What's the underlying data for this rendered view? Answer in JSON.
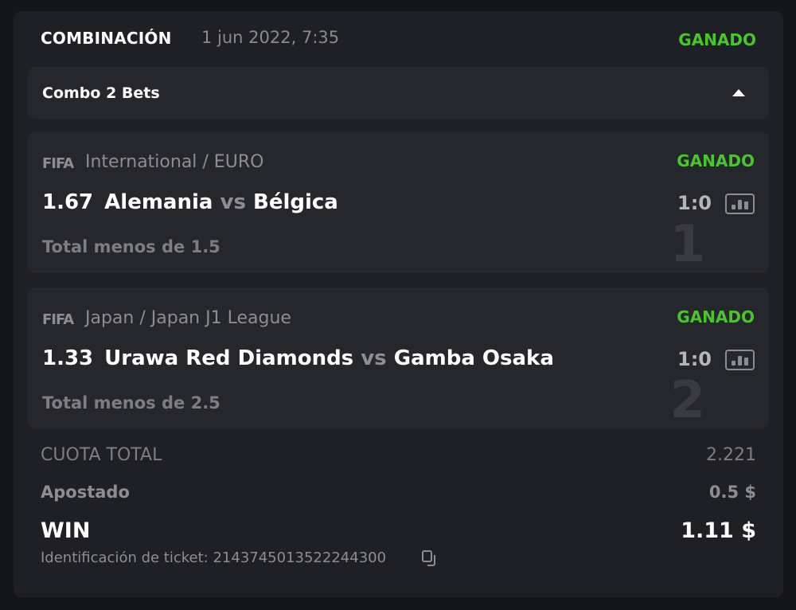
{
  "header": {
    "title": "COMBINACIÓN",
    "date": "1 jun 2022, 7:35",
    "status": "GANADO"
  },
  "combo": {
    "label": "Combo 2 Bets",
    "toggle_icon": "caret-up-icon"
  },
  "bets": [
    {
      "index": "1",
      "sport_logo": "FIFA",
      "league": "International / EURO",
      "status": "GANADO",
      "odd": "1.67",
      "home": "Alemania",
      "vs": "vs",
      "away": "Bélgica",
      "score": "1:0",
      "market": "Total menos de 1.5"
    },
    {
      "index": "2",
      "sport_logo": "FIFA",
      "league": "Japan / Japan J1 League",
      "status": "GANADO",
      "odd": "1.33",
      "home": "Urawa Red Diamonds",
      "vs": "vs",
      "away": "Gamba Osaka",
      "score": "1:0",
      "market": "Total menos de 2.5"
    }
  ],
  "summary": {
    "total_odds_label": "CUOTA TOTAL",
    "total_odds": "2.221",
    "stake_label": "Apostado",
    "stake": "0.5 $",
    "win_label": "WIN",
    "win": "1.11 $",
    "ticket_label": "Identificación de ticket: 2143745013522244300"
  },
  "colors": {
    "win_green": "#4cc430",
    "background": "#151619",
    "card": "#1f2025",
    "inner_card": "#26272c"
  }
}
